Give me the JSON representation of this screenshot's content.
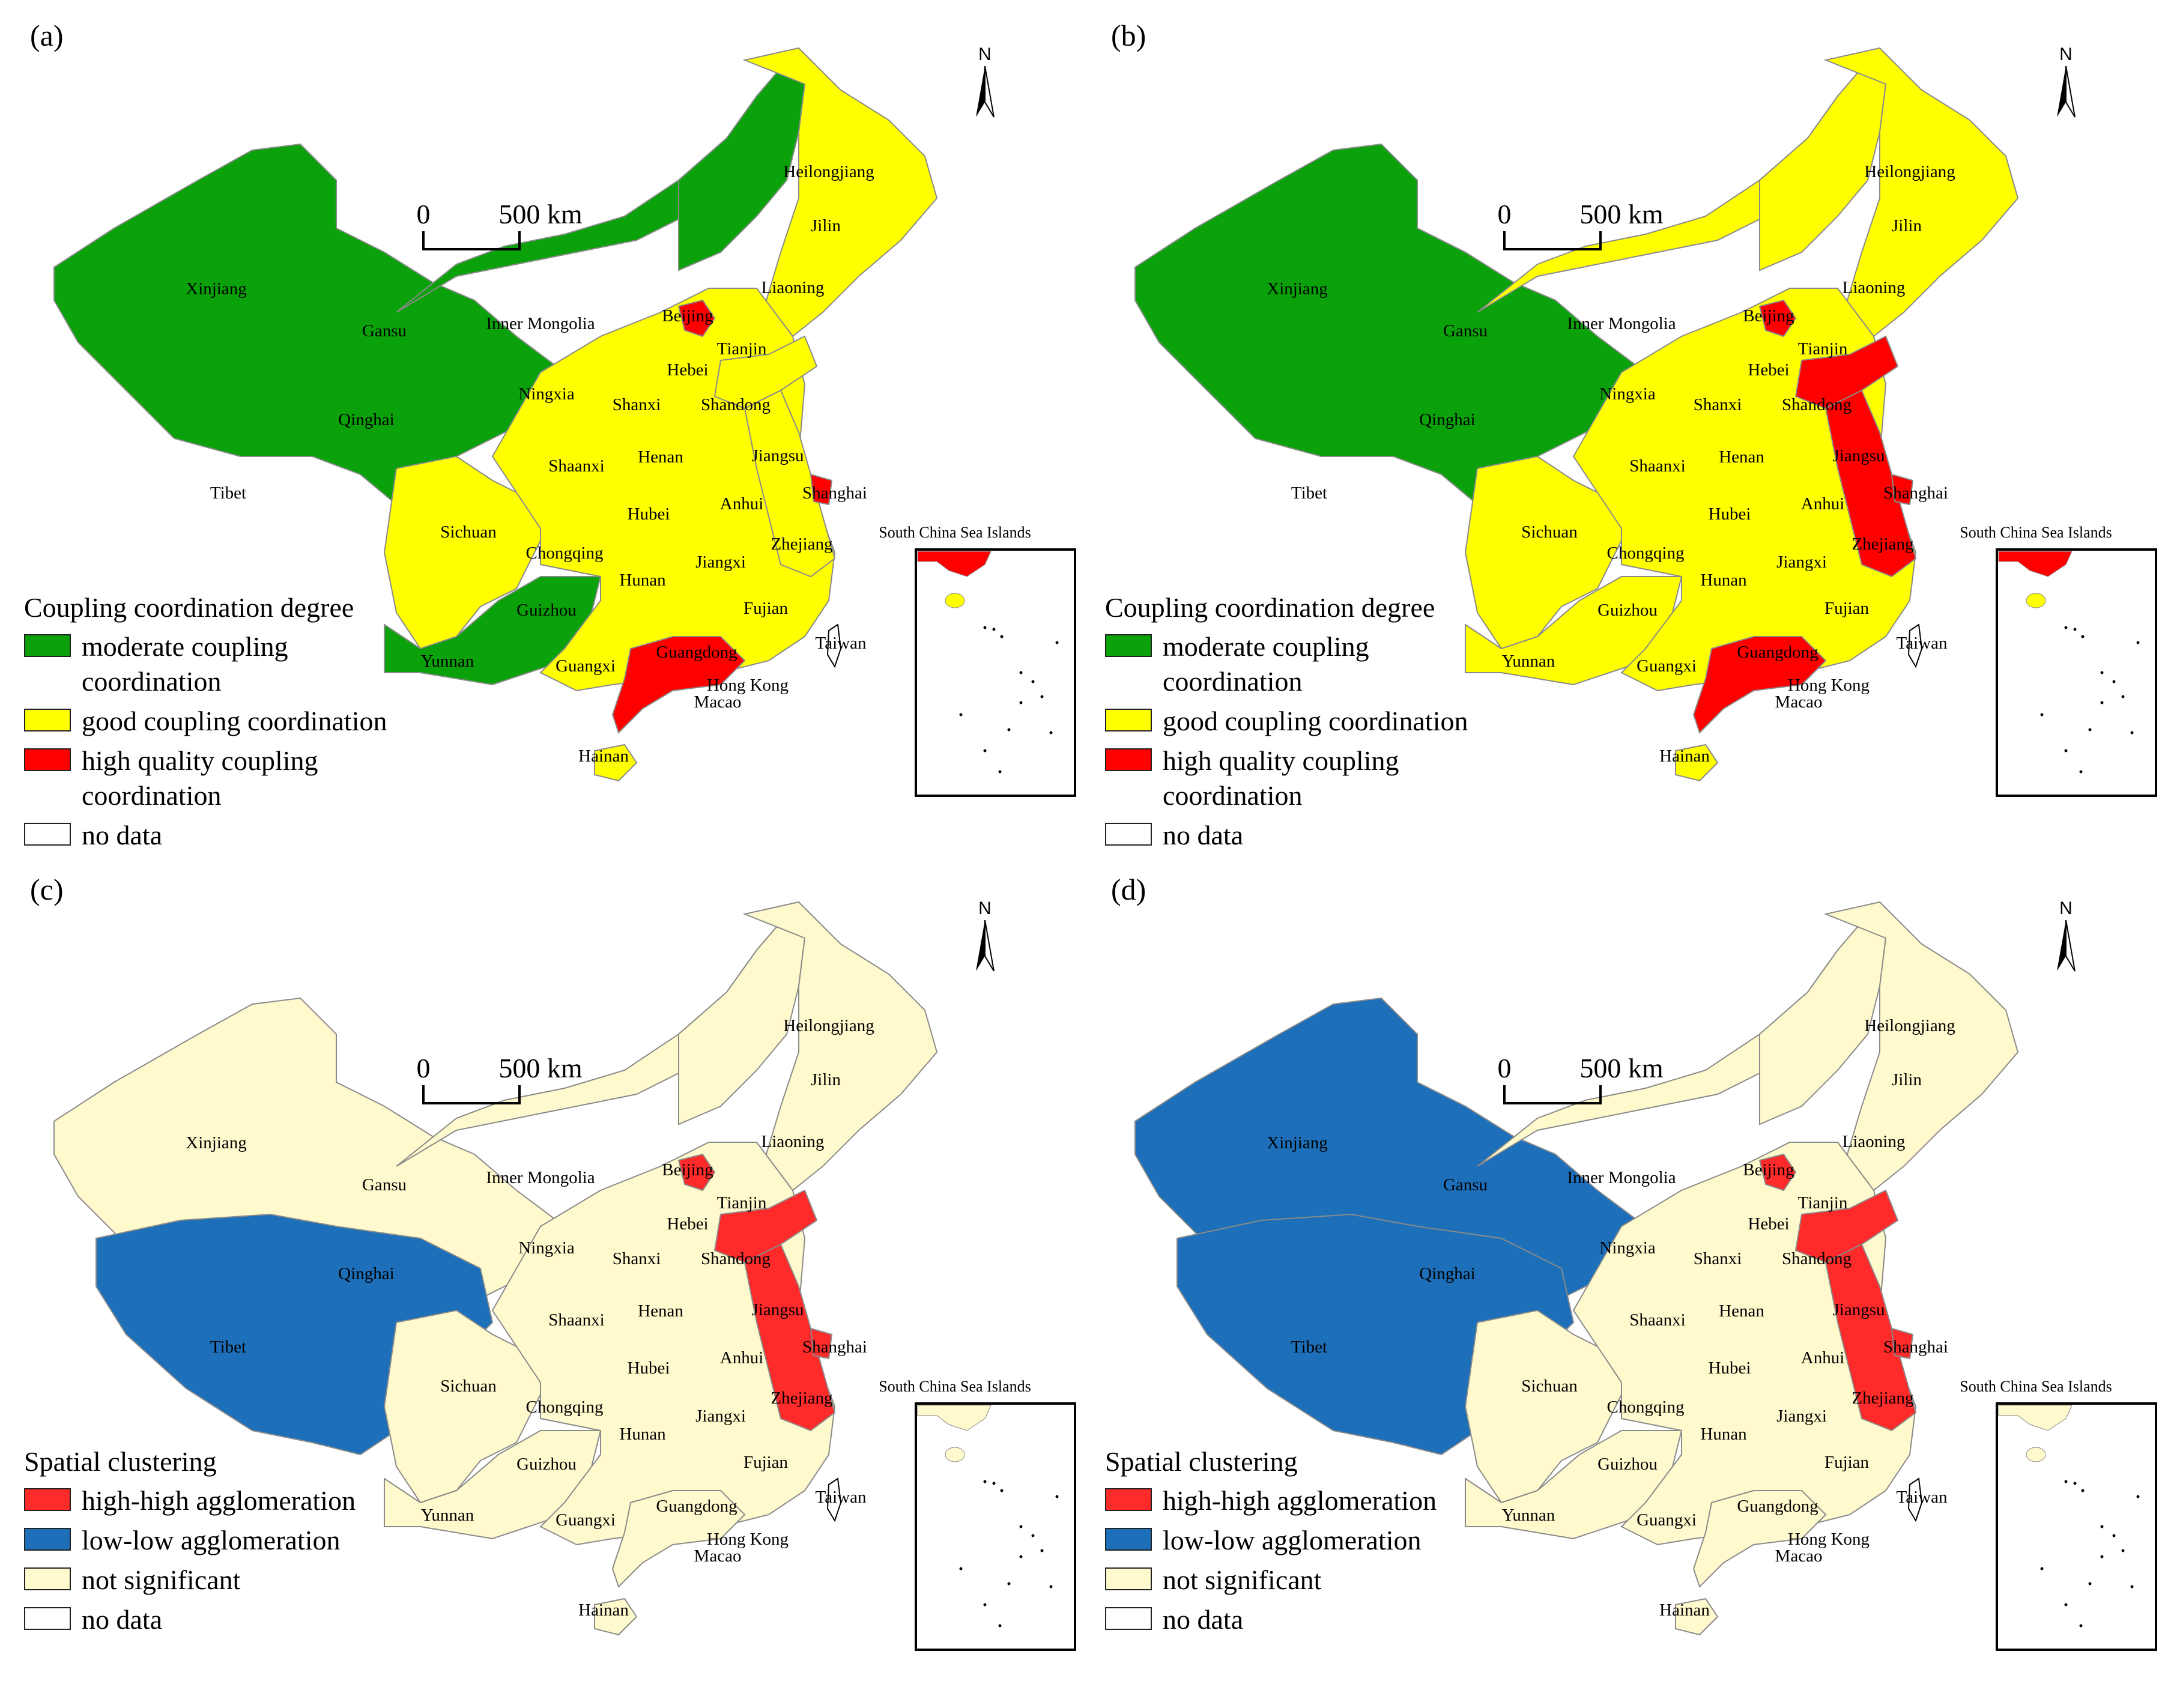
{
  "colors": {
    "moderate": "#0aa10a",
    "good": "#ffff00",
    "high_quality": "#ff0000",
    "not_significant": "#fffacd",
    "low_low": "#1c6fb8",
    "high_high": "#ff2a2a",
    "no_data": "#ffffff"
  },
  "scale_bar": {
    "zero": "0",
    "distance": "500 km"
  },
  "north_label": "N",
  "inset_title": "South China Sea Islands",
  "provinces": [
    "Xinjiang",
    "Gansu",
    "Inner Mongolia",
    "Qinghai",
    "Ningxia",
    "Tibet",
    "Sichuan",
    "Chongqing",
    "Guizhou",
    "Yunnan",
    "Guangxi",
    "Hunan",
    "Hubei",
    "Shaanxi",
    "Shanxi",
    "Henan",
    "Hebei",
    "Beijing",
    "Tianjin",
    "Shandong",
    "Jiangsu",
    "Anhui",
    "Shanghai",
    "Zhejiang",
    "Jiangxi",
    "Fujian",
    "Guangdong",
    "Hong Kong",
    "Macao",
    "Hainan",
    "Taiwan",
    "Liaoning",
    "Jilin",
    "Heilongjiang"
  ],
  "panels": [
    {
      "label": "(a)",
      "legend_title": "Coupling coordination degree",
      "legend": [
        {
          "label": "moderate coupling coordination",
          "color_key": "moderate"
        },
        {
          "label": "good coupling coordination",
          "color_key": "good"
        },
        {
          "label": "high quality coupling coordination",
          "color_key": "high_quality"
        },
        {
          "label": "no data",
          "color_key": "no_data"
        }
      ],
      "regions": {
        "northwest": "moderate",
        "north_central": "moderate",
        "northeast_strip": "moderate",
        "sichuan": "good",
        "southwest_low": "moderate",
        "east": "good",
        "northeast": "good",
        "beijing": "high_quality",
        "shandong": "good",
        "jiangsu_zhejiang": "good",
        "shanghai": "high_quality",
        "guangdong": "high_quality",
        "hainan": "good"
      }
    },
    {
      "label": "(b)",
      "legend_title": "Coupling coordination degree",
      "legend": [
        {
          "label": "moderate coupling coordination",
          "color_key": "moderate"
        },
        {
          "label": "good coupling coordination",
          "color_key": "good"
        },
        {
          "label": "high quality coupling coordination",
          "color_key": "high_quality"
        },
        {
          "label": "no data",
          "color_key": "no_data"
        }
      ],
      "regions": {
        "northwest": "moderate",
        "north_central": "good",
        "northeast_strip": "good",
        "sichuan": "good",
        "southwest_low": "good",
        "east": "good",
        "northeast": "good",
        "beijing": "high_quality",
        "shandong": "high_quality",
        "jiangsu_zhejiang": "high_quality",
        "shanghai": "high_quality",
        "guangdong": "high_quality",
        "hainan": "good"
      }
    },
    {
      "label": "(c)",
      "legend_title": "Spatial clustering",
      "legend": [
        {
          "label": "high-high agglomeration",
          "color_key": "high_high"
        },
        {
          "label": "low-low agglomeration",
          "color_key": "low_low"
        },
        {
          "label": "not significant",
          "color_key": "not_significant"
        },
        {
          "label": "no data",
          "color_key": "no_data"
        }
      ],
      "regions": {
        "northwest": "not_significant",
        "tibet_qinghai": "low_low",
        "north_central": "not_significant",
        "northeast_strip": "not_significant",
        "sichuan": "not_significant",
        "southwest_low": "not_significant",
        "east": "not_significant",
        "northeast": "not_significant",
        "beijing": "high_high",
        "shandong": "high_high",
        "jiangsu_zhejiang": "high_high",
        "shanghai": "high_high",
        "guangdong": "not_significant",
        "hainan": "not_significant"
      }
    },
    {
      "label": "(d)",
      "legend_title": "Spatial clustering",
      "legend": [
        {
          "label": "high-high agglomeration",
          "color_key": "high_high"
        },
        {
          "label": "low-low agglomeration",
          "color_key": "low_low"
        },
        {
          "label": "not significant",
          "color_key": "not_significant"
        },
        {
          "label": "no data",
          "color_key": "no_data"
        }
      ],
      "regions": {
        "northwest": "low_low",
        "tibet_qinghai": "low_low",
        "north_central": "not_significant",
        "northeast_strip": "not_significant",
        "sichuan": "not_significant",
        "southwest_low": "not_significant",
        "east": "not_significant",
        "northeast": "not_significant",
        "beijing": "high_high",
        "shandong": "high_high",
        "jiangsu_zhejiang": "high_high",
        "shanghai": "high_high",
        "guangdong": "not_significant",
        "hainan": "not_significant"
      }
    }
  ]
}
